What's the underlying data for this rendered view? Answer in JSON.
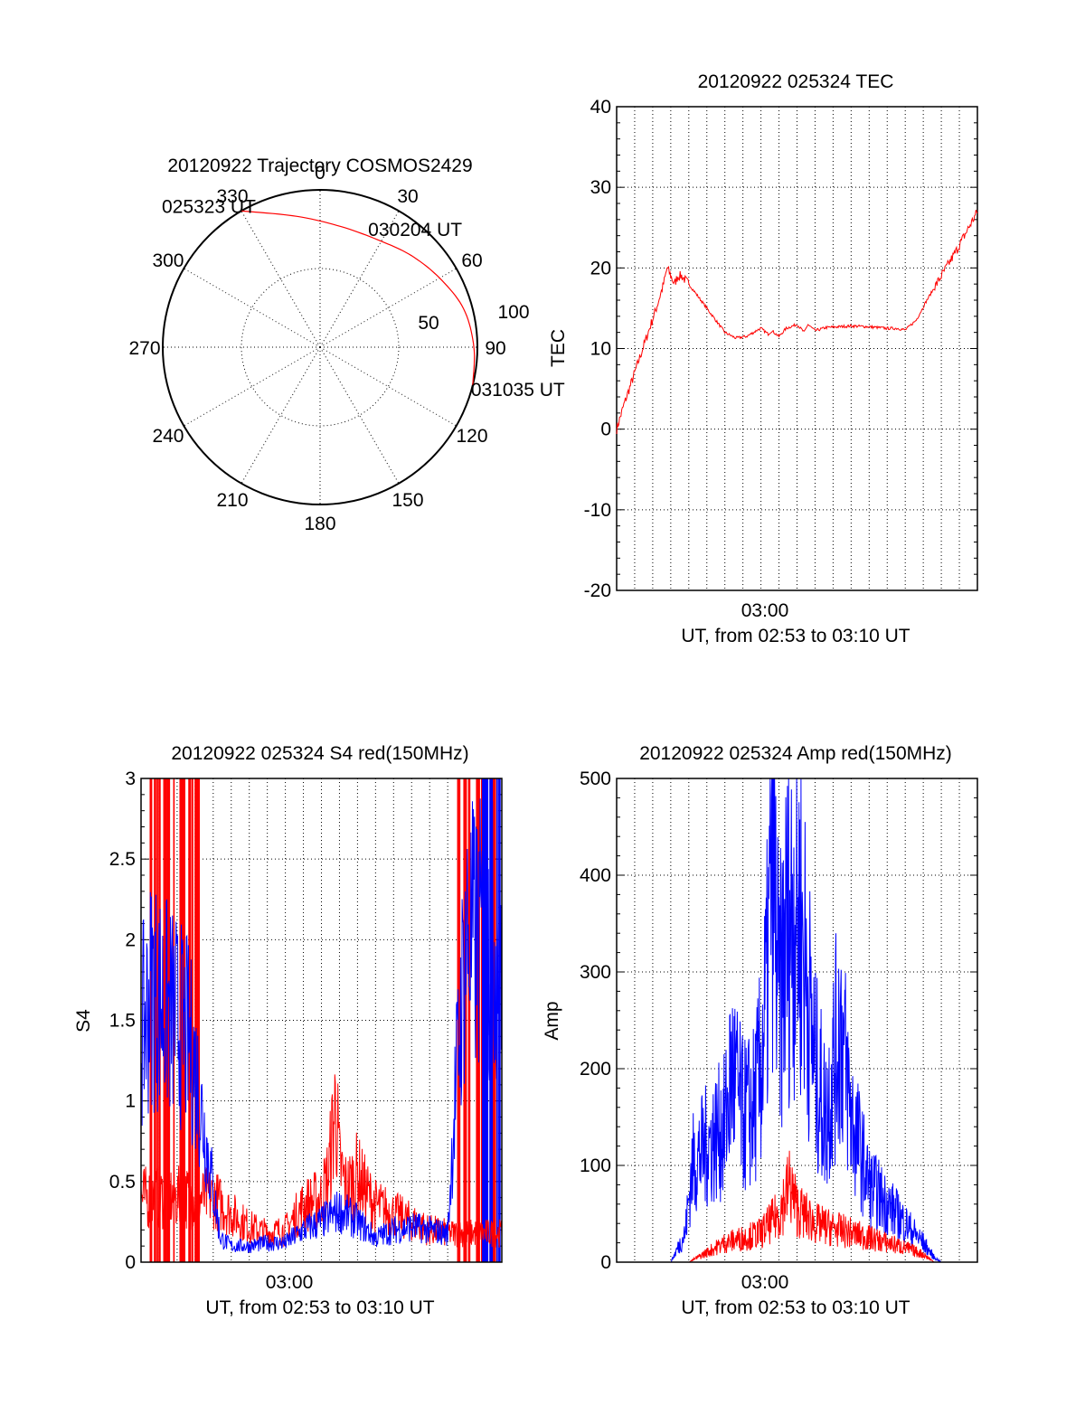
{
  "chart_data": [
    {
      "type": "polar",
      "title": "20120922 Trajectory COSMOS2429",
      "angle_labels": [
        "0",
        "30",
        "60",
        "90",
        "120",
        "150",
        "180",
        "210",
        "240",
        "270",
        "300",
        "330"
      ],
      "radius_labels": [
        "50",
        "100"
      ],
      "series": [
        {
          "color": "#ff0000",
          "points": [
            {
              "az": 330,
              "r": 90,
              "label": "025323 UT"
            },
            {
              "az": 350,
              "r": 76
            },
            {
              "az": 10,
              "r": 70
            },
            {
              "az": 30,
              "r": 70
            },
            {
              "az": 45,
              "r": 74,
              "label": "030204 UT"
            },
            {
              "az": 60,
              "r": 79
            },
            {
              "az": 75,
              "r": 85
            },
            {
              "az": 90,
              "r": 88
            },
            {
              "az": 104,
              "r": 90,
              "label": "031035 UT"
            }
          ]
        }
      ]
    },
    {
      "type": "line",
      "title": "20120922 025324 TEC",
      "ylabel": "TEC",
      "xlabel": "UT, from 02:53 to 03:10 UT",
      "xtick_label": "03:00",
      "ylim": [
        -20,
        40
      ],
      "yticks": [
        "-20",
        "-10",
        "0",
        "10",
        "20",
        "30",
        "40"
      ],
      "series": [
        {
          "color": "#ff0000",
          "x": [
            0.0,
            0.02,
            0.05,
            0.08,
            0.11,
            0.13,
            0.14,
            0.15,
            0.16,
            0.17,
            0.18,
            0.2,
            0.25,
            0.3,
            0.33,
            0.36,
            0.38,
            0.39,
            0.4,
            0.42,
            0.43,
            0.45,
            0.47,
            0.5,
            0.52,
            0.53,
            0.55,
            0.58,
            0.65,
            0.7,
            0.75,
            0.78,
            0.8,
            0.83,
            0.86,
            0.9,
            0.94,
            1.0
          ],
          "y": [
            0,
            3,
            7,
            11,
            15,
            18,
            20,
            19,
            18,
            19,
            19,
            18,
            15,
            12,
            11.3,
            11.5,
            12,
            12.3,
            12.5,
            11.8,
            12.2,
            11.5,
            12.5,
            13,
            12,
            13,
            12.2,
            12.6,
            12.8,
            12.7,
            12.5,
            12.5,
            12.3,
            13.5,
            16,
            19,
            22,
            27
          ]
        }
      ]
    },
    {
      "type": "line",
      "title": "20120922 025324 S4 red(150MHz)",
      "ylabel": "S4",
      "xlabel": "UT, from 02:53 to 03:10 UT",
      "xtick_label": "03:00",
      "ylim": [
        0,
        3
      ],
      "yticks": [
        "0",
        "0.5",
        "1",
        "1.5",
        "2",
        "2.5",
        "3"
      ],
      "series": [
        {
          "color": "#ff0000",
          "x": [
            0.2,
            0.25,
            0.3,
            0.35,
            0.4,
            0.45,
            0.5,
            0.52,
            0.54,
            0.55,
            0.57,
            0.6,
            0.62,
            0.65,
            0.7,
            0.75,
            0.8,
            0.85
          ],
          "y": [
            0.4,
            0.3,
            0.22,
            0.18,
            0.2,
            0.35,
            0.4,
            0.55,
            1.0,
            0.6,
            0.45,
            0.55,
            0.45,
            0.35,
            0.3,
            0.25,
            0.2,
            0.18
          ]
        },
        {
          "color": "#0000ff",
          "x": [
            0.0,
            0.03,
            0.06,
            0.1,
            0.13,
            0.15,
            0.17,
            0.19,
            0.22,
            0.25,
            0.3,
            0.35,
            0.4,
            0.45,
            0.5,
            0.55,
            0.6,
            0.65,
            0.7,
            0.75,
            0.8,
            0.85,
            0.87,
            0.9
          ],
          "y": [
            1.4,
            1.7,
            1.6,
            1.5,
            1.4,
            1.2,
            0.9,
            0.6,
            0.15,
            0.1,
            0.1,
            0.12,
            0.12,
            0.2,
            0.25,
            0.32,
            0.25,
            0.15,
            0.2,
            0.22,
            0.2,
            0.18,
            1.0,
            2.0
          ]
        }
      ]
    },
    {
      "type": "line",
      "title": "20120922 025324 Amp red(150MHz)",
      "ylabel": "Amp",
      "xlabel": "UT, from 02:53 to 03:10 UT",
      "xtick_label": "03:00",
      "ylim": [
        0,
        500
      ],
      "yticks": [
        "0",
        "100",
        "200",
        "300",
        "400",
        "500"
      ],
      "series": [
        {
          "color": "#0000ff",
          "x": [
            0.0,
            0.15,
            0.19,
            0.21,
            0.25,
            0.3,
            0.32,
            0.35,
            0.38,
            0.4,
            0.42,
            0.43,
            0.45,
            0.47,
            0.5,
            0.52,
            0.55,
            0.58,
            0.6,
            0.62,
            0.65,
            0.7,
            0.75,
            0.8,
            0.85,
            0.88,
            0.9,
            1.0
          ],
          "y": [
            0,
            0,
            30,
            100,
            120,
            140,
            200,
            150,
            160,
            200,
            300,
            450,
            260,
            340,
            380,
            320,
            200,
            150,
            200,
            250,
            150,
            80,
            60,
            40,
            20,
            5,
            0,
            0
          ]
        },
        {
          "color": "#ff0000",
          "x": [
            0.0,
            0.2,
            0.25,
            0.3,
            0.35,
            0.4,
            0.45,
            0.48,
            0.5,
            0.55,
            0.6,
            0.65,
            0.7,
            0.75,
            0.8,
            0.85,
            0.88,
            1.0
          ],
          "y": [
            0,
            0,
            10,
            20,
            25,
            30,
            50,
            80,
            55,
            40,
            35,
            30,
            25,
            20,
            15,
            8,
            0,
            0
          ]
        }
      ]
    }
  ]
}
